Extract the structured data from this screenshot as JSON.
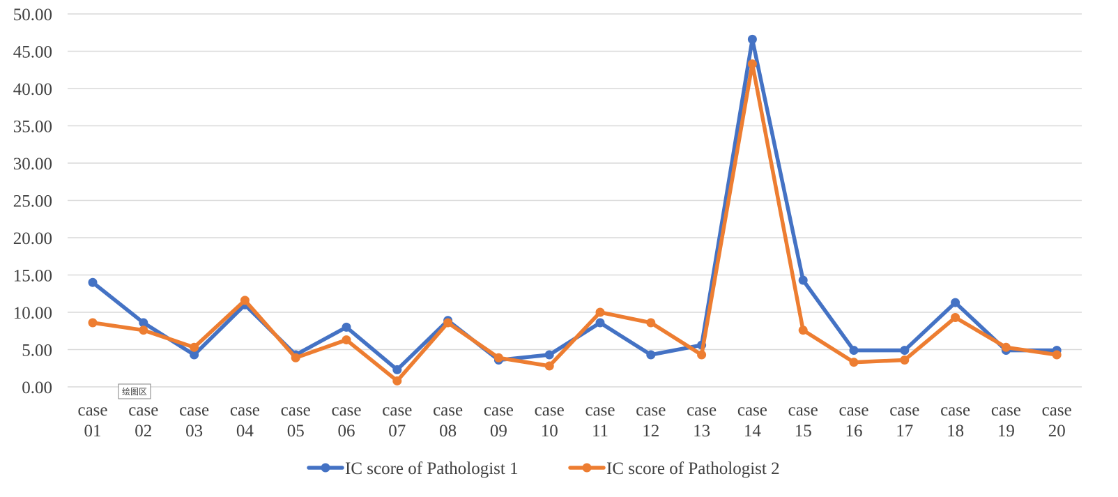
{
  "chart_data": {
    "type": "line",
    "title": "",
    "xlabel": "",
    "ylabel": "",
    "ylim": [
      0,
      50
    ],
    "y_ticks": [
      "0.00",
      "5.00",
      "10.00",
      "15.00",
      "20.00",
      "25.00",
      "30.00",
      "35.00",
      "40.00",
      "45.00",
      "50.00"
    ],
    "grid": "horizontal",
    "legend_position": "bottom",
    "categories": [
      [
        "case",
        "01"
      ],
      [
        "case",
        "02"
      ],
      [
        "case",
        "03"
      ],
      [
        "case",
        "04"
      ],
      [
        "case",
        "05"
      ],
      [
        "case",
        "06"
      ],
      [
        "case",
        "07"
      ],
      [
        "case",
        "08"
      ],
      [
        "case",
        "09"
      ],
      [
        "case",
        "10"
      ],
      [
        "case",
        "11"
      ],
      [
        "case",
        "12"
      ],
      [
        "case",
        "13"
      ],
      [
        "case",
        "14"
      ],
      [
        "case",
        "15"
      ],
      [
        "case",
        "16"
      ],
      [
        "case",
        "17"
      ],
      [
        "case",
        "18"
      ],
      [
        "case",
        "19"
      ],
      [
        "case",
        "20"
      ]
    ],
    "series": [
      {
        "name": "IC score of Pathologist 1",
        "color": "#4472C4",
        "values": [
          14.0,
          8.6,
          4.3,
          11.0,
          4.3,
          8.0,
          2.3,
          8.9,
          3.6,
          4.3,
          8.6,
          4.3,
          5.6,
          46.6,
          14.3,
          4.9,
          4.9,
          11.3,
          4.9,
          4.9
        ]
      },
      {
        "name": "IC score of Pathologist 2",
        "color": "#ED7D31",
        "values": [
          8.6,
          7.6,
          5.3,
          11.6,
          3.9,
          6.3,
          0.8,
          8.6,
          3.9,
          2.8,
          10.0,
          8.6,
          4.3,
          43.3,
          7.6,
          3.3,
          3.6,
          9.3,
          5.3,
          4.3
        ]
      }
    ]
  },
  "tooltip": {
    "label": "绘图区"
  }
}
